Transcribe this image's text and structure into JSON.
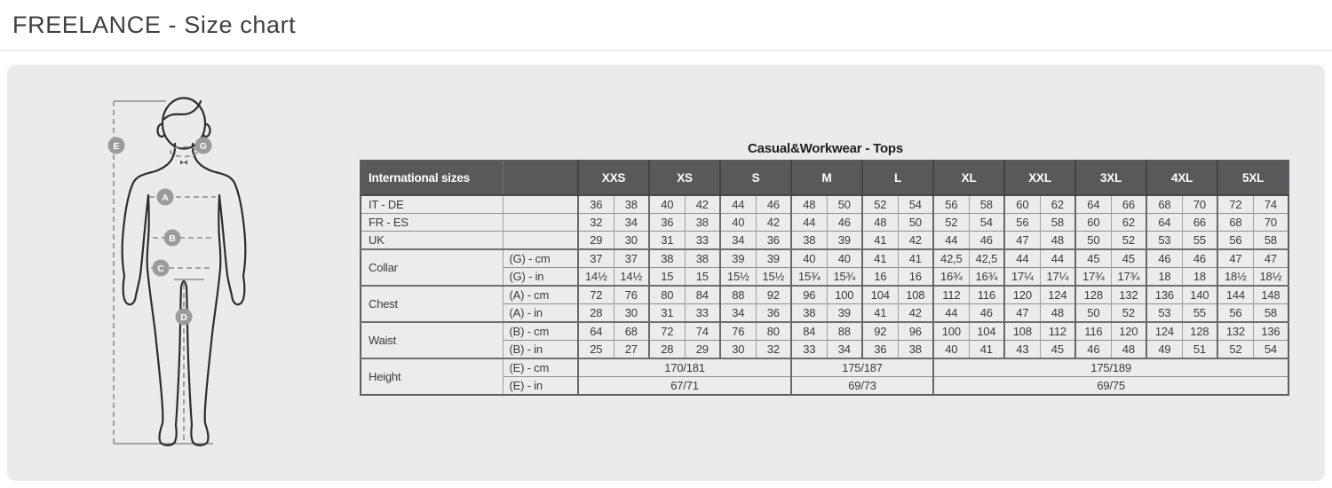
{
  "page": {
    "title": "FREELANCE - Size chart"
  },
  "colors": {
    "panel_bg": "#ebebeb",
    "header_bg": "#59595b",
    "header_text": "#ffffff",
    "cell_bg": "#ececec",
    "marker_bg": "#9b9b9b"
  },
  "diagram": {
    "markers": [
      "E",
      "G",
      "A",
      "B",
      "C",
      "D"
    ]
  },
  "table": {
    "title": "Casual&Workwear - Tops",
    "corner_label": "International sizes",
    "size_headers": [
      "XXS",
      "XS",
      "S",
      "M",
      "L",
      "XL",
      "XXL",
      "3XL",
      "4XL",
      "5XL"
    ],
    "rows": [
      {
        "label": "IT - DE",
        "values": [
          "36",
          "38",
          "40",
          "42",
          "44",
          "46",
          "48",
          "50",
          "52",
          "54",
          "56",
          "58",
          "60",
          "62",
          "64",
          "66",
          "68",
          "70",
          "72",
          "74"
        ]
      },
      {
        "label": "FR - ES",
        "values": [
          "32",
          "34",
          "36",
          "38",
          "40",
          "42",
          "44",
          "46",
          "48",
          "50",
          "52",
          "54",
          "56",
          "58",
          "60",
          "62",
          "64",
          "66",
          "68",
          "70"
        ]
      },
      {
        "label": "UK",
        "values": [
          "29",
          "30",
          "31",
          "33",
          "34",
          "36",
          "38",
          "39",
          "41",
          "42",
          "44",
          "46",
          "47",
          "48",
          "50",
          "52",
          "53",
          "55",
          "56",
          "58"
        ]
      },
      {
        "label": "Collar",
        "subrows": [
          {
            "label": "(G) - cm",
            "values": [
              "37",
              "37",
              "38",
              "38",
              "39",
              "39",
              "40",
              "40",
              "41",
              "41",
              "42,5",
              "42,5",
              "44",
              "44",
              "45",
              "45",
              "46",
              "46",
              "47",
              "47"
            ]
          },
          {
            "label": "(G) - in",
            "values": [
              "14½",
              "14½",
              "15",
              "15",
              "15½",
              "15½",
              "15¾",
              "15¾",
              "16",
              "16",
              "16¾",
              "16¾",
              "17¼",
              "17¼",
              "17¾",
              "17¾",
              "18",
              "18",
              "18½",
              "18½"
            ]
          }
        ]
      },
      {
        "label": "Chest",
        "subrows": [
          {
            "label": "(A) - cm",
            "values": [
              "72",
              "76",
              "80",
              "84",
              "88",
              "92",
              "96",
              "100",
              "104",
              "108",
              "112",
              "116",
              "120",
              "124",
              "128",
              "132",
              "136",
              "140",
              "144",
              "148"
            ]
          },
          {
            "label": "(A) - in",
            "values": [
              "28",
              "30",
              "31",
              "33",
              "34",
              "36",
              "38",
              "39",
              "41",
              "42",
              "44",
              "46",
              "47",
              "48",
              "50",
              "52",
              "53",
              "55",
              "56",
              "58"
            ]
          }
        ]
      },
      {
        "label": "Waist",
        "subrows": [
          {
            "label": "(B) - cm",
            "values": [
              "64",
              "68",
              "72",
              "74",
              "76",
              "80",
              "84",
              "88",
              "92",
              "96",
              "100",
              "104",
              "108",
              "112",
              "116",
              "120",
              "124",
              "128",
              "132",
              "136"
            ]
          },
          {
            "label": "(B) - in",
            "values": [
              "25",
              "27",
              "28",
              "29",
              "30",
              "32",
              "33",
              "34",
              "36",
              "38",
              "40",
              "41",
              "43",
              "45",
              "46",
              "48",
              "49",
              "51",
              "52",
              "54"
            ]
          }
        ]
      },
      {
        "label": "Height",
        "subrows": [
          {
            "label": "(E) - cm",
            "merged": [
              {
                "span": 6,
                "value": "170/181"
              },
              {
                "span": 4,
                "value": "175/187"
              },
              {
                "span": 10,
                "value": "175/189"
              }
            ]
          },
          {
            "label": "(E) - in",
            "merged": [
              {
                "span": 6,
                "value": "67/71"
              },
              {
                "span": 4,
                "value": "69/73"
              },
              {
                "span": 10,
                "value": "69/75"
              }
            ]
          }
        ]
      }
    ]
  }
}
